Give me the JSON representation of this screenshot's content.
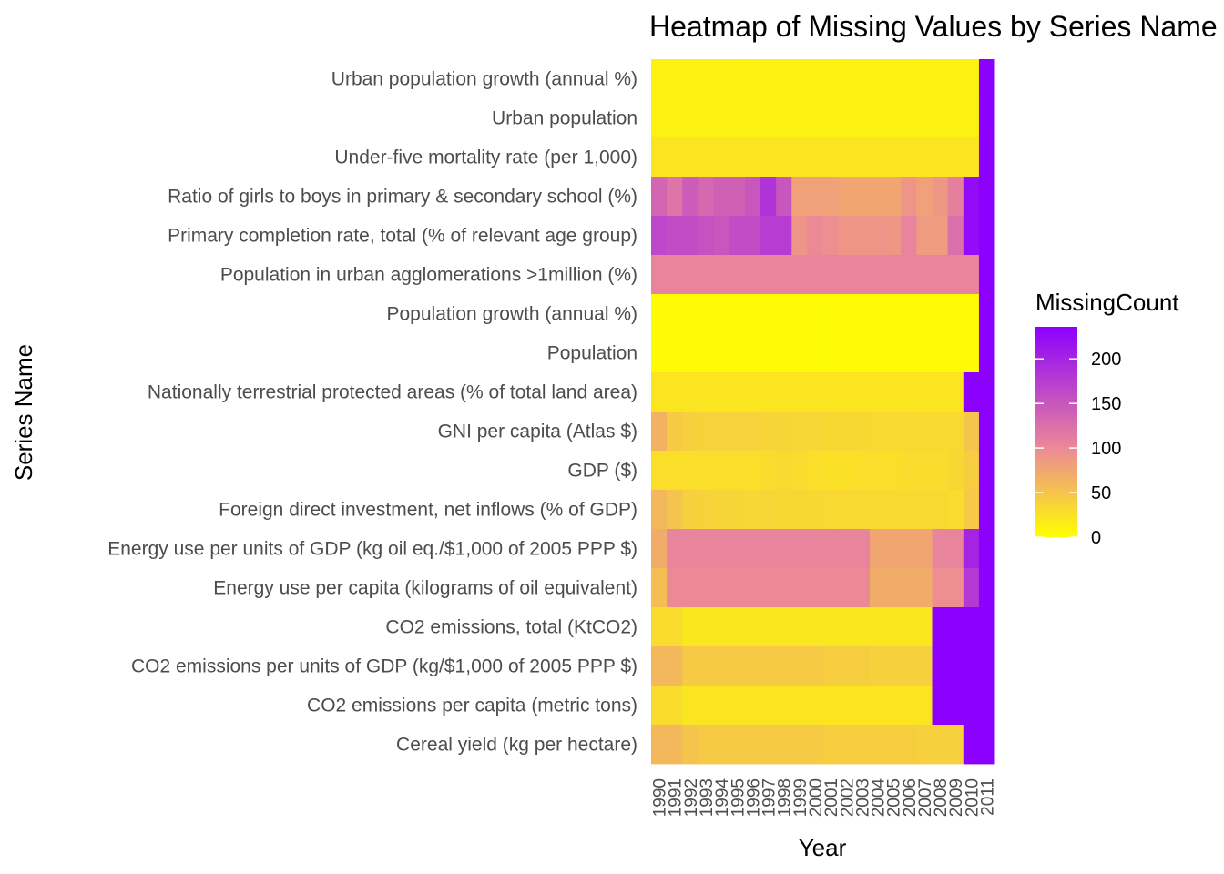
{
  "chart_data": {
    "type": "heatmap",
    "title": "Heatmap of Missing Values by Series Name and Year",
    "xlabel": "Year",
    "ylabel": "Series Name",
    "legend_title": "MissingCount",
    "legend_ticks": [
      0,
      50,
      100,
      150,
      200
    ],
    "legend_range": [
      0,
      236
    ],
    "color_low": "#ffff00",
    "color_mid": "#ec8a96",
    "color_high": "#8b00ff",
    "years": [
      "1990",
      "1991",
      "1992",
      "1993",
      "1994",
      "1995",
      "1996",
      "1997",
      "1998",
      "1999",
      "2000",
      "2001",
      "2002",
      "2003",
      "2004",
      "2005",
      "2006",
      "2007",
      "2008",
      "2009",
      "2010",
      "2011"
    ],
    "series_names": [
      "Urban population growth (annual %)",
      "Urban population",
      "Under-five mortality rate (per 1,000)",
      "Ratio of girls to boys in primary & secondary school (%)",
      "Primary completion rate, total (% of relevant age group)",
      "Population in urban agglomerations >1million (%)",
      "Population growth (annual %)",
      "Population",
      "Nationally terrestrial protected areas (% of total land area)",
      "GNI per capita (Atlas $)",
      "GDP ($)",
      "Foreign direct investment, net inflows (% of GDP)",
      "Energy use per units of GDP (kg oil eq./$1,000 of 2005 PPP $)",
      "Energy use per capita (kilograms of oil equivalent)",
      "CO2 emissions, total (KtCO2)",
      "CO2 emissions per units of GDP (kg/$1,000 of 2005 PPP $)",
      "CO2 emissions per capita (metric tons)",
      "Cereal yield (kg per hectare)"
    ],
    "values": [
      [
        12,
        12,
        12,
        12,
        12,
        11,
        11,
        11,
        11,
        11,
        11,
        11,
        11,
        11,
        11,
        11,
        11,
        11,
        11,
        11,
        11,
        236
      ],
      [
        12,
        12,
        12,
        12,
        12,
        12,
        12,
        12,
        12,
        12,
        12,
        12,
        12,
        12,
        12,
        12,
        12,
        12,
        12,
        12,
        12,
        236
      ],
      [
        22,
        22,
        22,
        22,
        22,
        22,
        22,
        22,
        22,
        22,
        22,
        22,
        22,
        22,
        22,
        22,
        22,
        22,
        22,
        22,
        22,
        236
      ],
      [
        135,
        120,
        145,
        132,
        140,
        140,
        150,
        185,
        150,
        80,
        80,
        80,
        75,
        75,
        75,
        75,
        90,
        80,
        88,
        110,
        225,
        236
      ],
      [
        165,
        160,
        160,
        155,
        150,
        160,
        160,
        175,
        175,
        90,
        100,
        95,
        90,
        90,
        90,
        88,
        105,
        85,
        85,
        125,
        225,
        236
      ],
      [
        105,
        105,
        105,
        105,
        105,
        105,
        105,
        105,
        105,
        105,
        105,
        105,
        105,
        105,
        105,
        105,
        105,
        105,
        105,
        105,
        105,
        236
      ],
      [
        3,
        3,
        3,
        3,
        3,
        3,
        3,
        3,
        3,
        3,
        3,
        3,
        3,
        3,
        3,
        3,
        3,
        3,
        3,
        3,
        3,
        236
      ],
      [
        3,
        3,
        3,
        3,
        3,
        3,
        3,
        3,
        3,
        3,
        3,
        3,
        3,
        3,
        3,
        3,
        3,
        3,
        3,
        3,
        3,
        236
      ],
      [
        22,
        22,
        22,
        22,
        22,
        22,
        22,
        22,
        22,
        22,
        22,
        22,
        22,
        22,
        22,
        22,
        22,
        22,
        22,
        22,
        236,
        236
      ],
      [
        65,
        45,
        40,
        38,
        38,
        38,
        38,
        36,
        36,
        35,
        35,
        34,
        34,
        34,
        33,
        33,
        33,
        32,
        32,
        32,
        50,
        236
      ],
      [
        28,
        28,
        28,
        28,
        28,
        28,
        28,
        30,
        32,
        30,
        28,
        26,
        26,
        28,
        28,
        28,
        30,
        30,
        30,
        34,
        42,
        236
      ],
      [
        60,
        50,
        40,
        38,
        36,
        36,
        35,
        35,
        34,
        34,
        34,
        33,
        33,
        33,
        32,
        32,
        32,
        32,
        32,
        30,
        45,
        236
      ],
      [
        70,
        105,
        105,
        105,
        105,
        105,
        105,
        105,
        105,
        105,
        105,
        105,
        105,
        105,
        75,
        75,
        75,
        75,
        105,
        105,
        200,
        236
      ],
      [
        55,
        100,
        100,
        100,
        100,
        100,
        100,
        100,
        100,
        100,
        100,
        100,
        100,
        100,
        70,
        70,
        70,
        70,
        95,
        95,
        180,
        236
      ],
      [
        30,
        30,
        20,
        20,
        20,
        20,
        20,
        20,
        20,
        20,
        20,
        20,
        20,
        20,
        20,
        20,
        20,
        20,
        236,
        236,
        236,
        236
      ],
      [
        60,
        60,
        45,
        45,
        45,
        45,
        45,
        45,
        45,
        45,
        45,
        42,
        42,
        42,
        40,
        40,
        40,
        40,
        236,
        236,
        236,
        236
      ],
      [
        30,
        30,
        22,
        22,
        22,
        22,
        22,
        22,
        22,
        22,
        22,
        22,
        22,
        22,
        22,
        22,
        22,
        22,
        236,
        236,
        236,
        236
      ],
      [
        60,
        60,
        50,
        45,
        45,
        45,
        45,
        45,
        45,
        45,
        45,
        42,
        42,
        42,
        42,
        42,
        42,
        40,
        40,
        40,
        236,
        236
      ]
    ]
  }
}
